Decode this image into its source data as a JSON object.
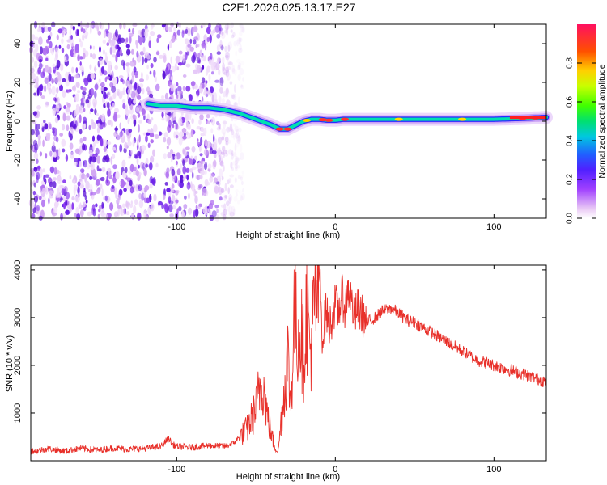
{
  "title": "C2E1.2026.025.13.17.E27",
  "chart_data": [
    {
      "type": "heatmap",
      "name": "spectrogram",
      "xlabel": "Height of straight line (km)",
      "ylabel": "Frequency (Hz)",
      "xlim": [
        -192,
        133
      ],
      "ylim": [
        -50,
        50
      ],
      "xticks": [
        -100,
        0,
        100
      ],
      "xtick_labels": [
        "-100",
        "0",
        "100"
      ],
      "yticks": [
        -40,
        -20,
        0,
        20,
        40
      ],
      "ytick_labels": [
        "-40",
        "-20",
        "0",
        "20",
        "40"
      ],
      "noise_region_km": [
        -192,
        -58
      ],
      "signal_track": {
        "x": [
          -118,
          -110,
          -100,
          -90,
          -80,
          -70,
          -60,
          -50,
          -40,
          -35,
          -30,
          -25,
          -20,
          -15,
          -10,
          -5,
          0,
          5,
          10,
          20,
          40,
          60,
          80,
          100,
          120,
          133
        ],
        "y": [
          9,
          8,
          8,
          7,
          7,
          6,
          4,
          1,
          -2,
          -4,
          -4,
          -2,
          0,
          1,
          1,
          0.5,
          0.5,
          1,
          1,
          1,
          1,
          1,
          1,
          1,
          1.5,
          2
        ]
      },
      "colorbar": {
        "label": "Normalized spectral amplitude",
        "range": [
          0,
          1
        ],
        "ticks": [
          0.0,
          0.2,
          0.4,
          0.6,
          0.8
        ],
        "tick_labels": [
          "0.0",
          "0.2",
          "0.4",
          "0.6",
          "0.8"
        ]
      }
    },
    {
      "type": "line",
      "name": "snr",
      "xlabel": "Height of straight line (km)",
      "ylabel": "SNR (10 * v/v)",
      "xlim": [
        -192,
        133
      ],
      "ylim": [
        0,
        4100
      ],
      "xticks": [
        -100,
        0,
        100
      ],
      "xtick_labels": [
        "-100",
        "0",
        "100"
      ],
      "yticks": [
        1000,
        2000,
        3000,
        4000
      ],
      "ytick_labels": [
        "1000",
        "2000",
        "3000",
        "4000"
      ],
      "color": "#e8302a",
      "series": [
        {
          "name": "SNR",
          "x": [
            -192,
            -180,
            -170,
            -160,
            -150,
            -140,
            -130,
            -120,
            -110,
            -105,
            -103,
            -100,
            -90,
            -80,
            -70,
            -65,
            -60,
            -55,
            -50,
            -48,
            -46,
            -44,
            -42,
            -40,
            -38,
            -36,
            -34,
            -32,
            -30,
            -28,
            -26,
            -24,
            -22,
            -20,
            -18,
            -16,
            -14,
            -12,
            -10,
            -8,
            -6,
            -4,
            -2,
            0,
            2,
            4,
            6,
            8,
            10,
            12,
            14,
            16,
            18,
            20,
            25,
            30,
            35,
            40,
            45,
            50,
            60,
            70,
            80,
            90,
            100,
            110,
            120,
            133
          ],
          "y": [
            200,
            250,
            200,
            260,
            220,
            270,
            240,
            260,
            300,
            480,
            350,
            300,
            280,
            320,
            300,
            350,
            500,
            700,
            1100,
            1500,
            1700,
            1200,
            800,
            500,
            300,
            200,
            900,
            1500,
            2200,
            1100,
            3100,
            2600,
            2800,
            2200,
            3300,
            2300,
            2900,
            3400,
            4000,
            2500,
            3200,
            2800,
            3000,
            3300,
            3100,
            3500,
            3200,
            3600,
            3400,
            3000,
            3200,
            3100,
            3000,
            2900,
            3000,
            3150,
            3200,
            3100,
            2950,
            2900,
            2700,
            2500,
            2300,
            2100,
            2000,
            1900,
            1800,
            1650
          ]
        }
      ]
    }
  ]
}
